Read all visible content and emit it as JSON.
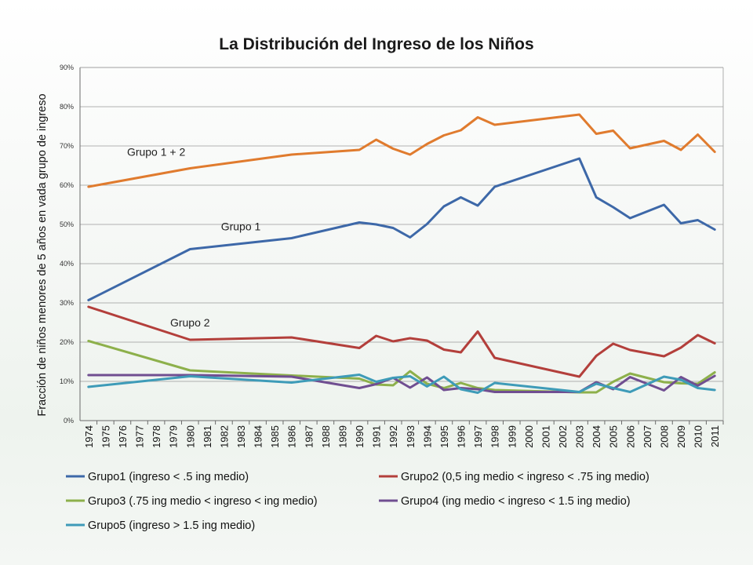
{
  "chart_data": {
    "type": "line",
    "title": "La Distribución del Ingreso de los Niños",
    "ylabel": "Fracción de niños menores de 5 años en vada grupo de ingreso",
    "xlabel": "",
    "ylim": [
      0,
      90
    ],
    "yticks": [
      "0%",
      "10%",
      "20%",
      "30%",
      "40%",
      "50%",
      "60%",
      "70%",
      "80%",
      "90%"
    ],
    "grid": true,
    "legend_position": "bottom",
    "x": [
      1974,
      1980,
      1986,
      1990,
      1991,
      1992,
      1993,
      1994,
      1995,
      1996,
      1997,
      1998,
      1999,
      2003,
      2004,
      2005,
      2006,
      2007,
      2008,
      2009,
      2010,
      2011
    ],
    "series": [
      {
        "name": "Grupo1 (ingreso < .5 ing medio)",
        "color": "#3D68A8",
        "values": [
          30.7,
          43.7,
          46.5,
          50.5,
          50.0,
          49.1,
          46.7,
          50.1,
          54.6,
          56.9,
          54.8,
          59.6,
          null,
          66.8,
          56.9,
          54.4,
          51.6,
          null,
          55.0,
          50.3,
          51.1,
          48.7
        ]
      },
      {
        "name": "Grupo2 (0,5 ing medio < ingreso < .75 ing medio)",
        "color": "#B33F3B",
        "values": [
          29.0,
          20.6,
          21.2,
          18.5,
          21.6,
          20.2,
          21.0,
          20.4,
          18.1,
          17.4,
          22.7,
          16.0,
          null,
          11.2,
          16.5,
          19.6,
          18.0,
          null,
          16.4,
          18.6,
          21.8,
          19.7
        ]
      },
      {
        "name": "Grupo3 (.75 ing medio < ingreso < ing medio)",
        "color": "#8DB04B",
        "values": [
          20.3,
          12.8,
          11.5,
          10.7,
          9.2,
          9.0,
          12.6,
          9.4,
          8.3,
          9.6,
          8.3,
          7.8,
          null,
          7.2,
          7.2,
          9.9,
          12.0,
          null,
          9.8,
          9.5,
          9.4,
          12.3
        ]
      },
      {
        "name": "Grupo4 (ing medio < ingreso  < 1.5 ing medio)",
        "color": "#704E91",
        "values": [
          11.6,
          11.6,
          11.2,
          8.3,
          9.3,
          10.9,
          8.4,
          11.0,
          7.8,
          8.3,
          8.0,
          7.3,
          null,
          7.3,
          9.8,
          8.0,
          11.1,
          null,
          7.7,
          11.1,
          8.9,
          11.4
        ]
      },
      {
        "name": "Grupo5 (ingreso > 1.5 ing medio)",
        "color": "#3E9BB8",
        "values": [
          8.6,
          11.3,
          9.7,
          11.7,
          9.9,
          10.9,
          11.3,
          8.7,
          11.2,
          8.0,
          7.1,
          9.6,
          null,
          7.3,
          9.4,
          8.3,
          7.3,
          null,
          11.2,
          10.4,
          8.3,
          7.8
        ]
      },
      {
        "name": "Grupo 1 + 2",
        "color": "#E07B2E",
        "legend": false,
        "values": [
          59.6,
          64.3,
          67.8,
          69.0,
          71.6,
          69.3,
          67.8,
          70.5,
          72.7,
          74.0,
          77.3,
          75.4,
          null,
          78.0,
          73.1,
          73.9,
          69.4,
          null,
          71.3,
          69.0,
          72.9,
          68.5
        ]
      }
    ],
    "annotations": [
      {
        "text": "Grupo 1 + 2",
        "x": 1978,
        "y": 67.5
      },
      {
        "text": "Grupo 1",
        "x": 1983,
        "y": 48.5
      },
      {
        "text": "Grupo 2",
        "x": 1980,
        "y": 24.0
      }
    ]
  }
}
